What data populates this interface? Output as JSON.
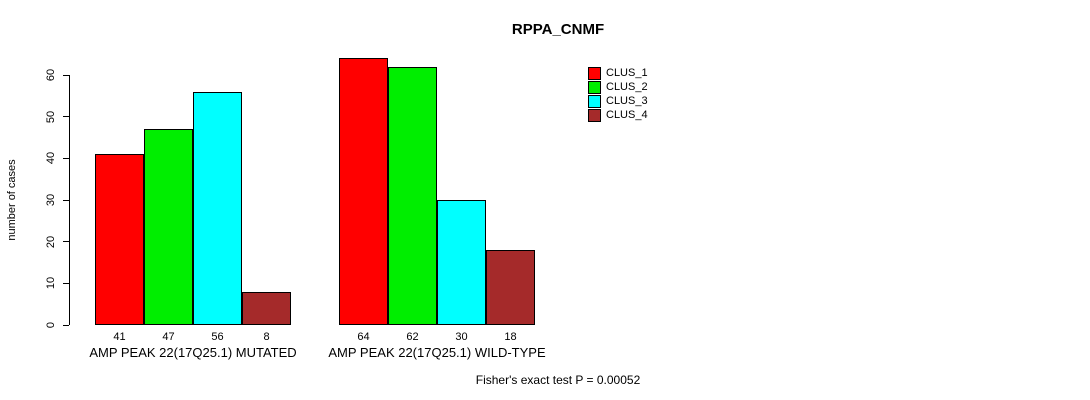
{
  "chart_data": {
    "type": "bar",
    "title": "RPPA_CNMF",
    "ylabel": "number of cases",
    "xlabel": "",
    "ylim": [
      0,
      60
    ],
    "yticks": [
      0,
      10,
      20,
      30,
      40,
      50,
      60
    ],
    "grid": false,
    "legend_position": "top-right",
    "bar_value_labels": true,
    "categories": [
      "AMP PEAK 22(17Q25.1) MUTATED",
      "AMP PEAK 22(17Q25.1) WILD-TYPE"
    ],
    "series": [
      {
        "name": "CLUS_1",
        "color": "#ff0000",
        "values": [
          41,
          64
        ]
      },
      {
        "name": "CLUS_2",
        "color": "#00ee00",
        "values": [
          47,
          62
        ]
      },
      {
        "name": "CLUS_3",
        "color": "#00ffff",
        "values": [
          56,
          30
        ]
      },
      {
        "name": "CLUS_4",
        "color": "#a52a2a",
        "values": [
          8,
          18
        ]
      }
    ],
    "annotation": "Fisher's exact test P = 0.00052"
  }
}
